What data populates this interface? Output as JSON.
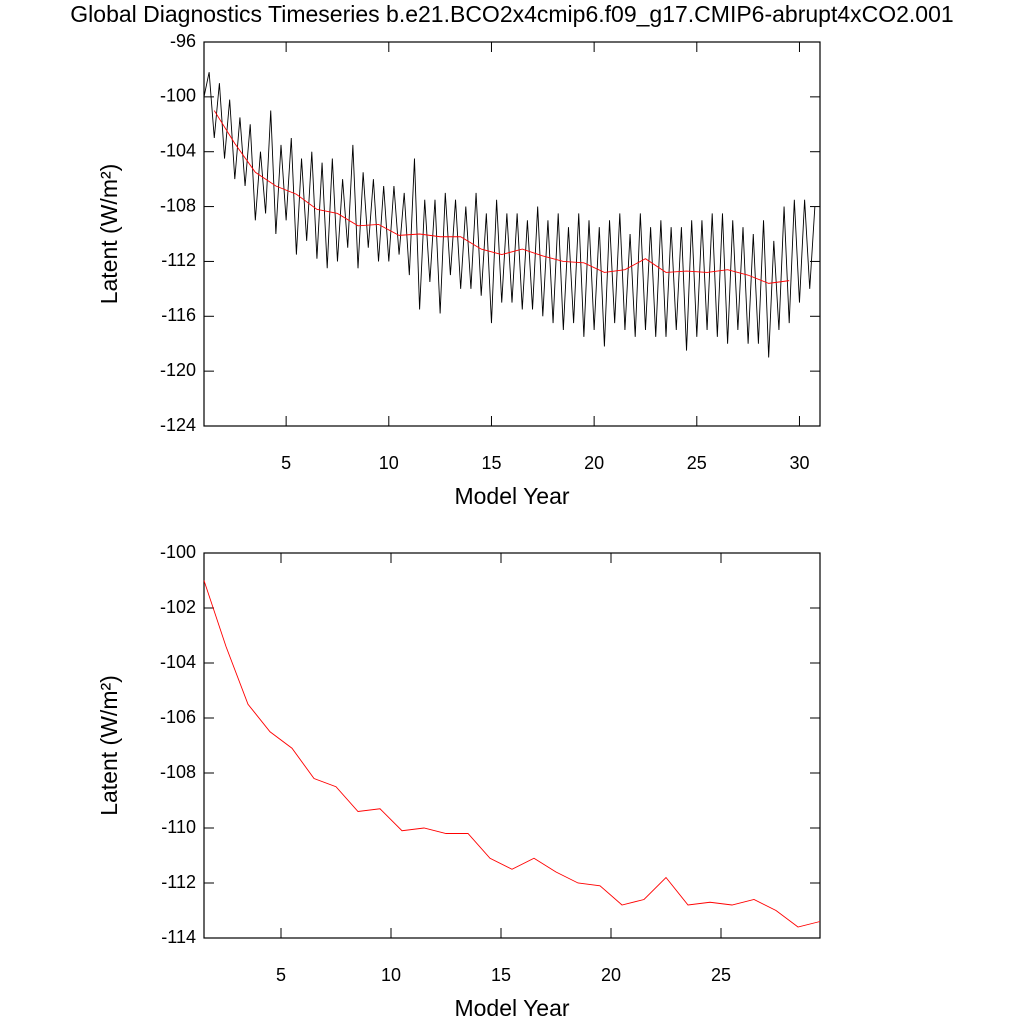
{
  "title": "Global Diagnostics Timeseries b.e21.BCO2x4cmip6.f09_g17.CMIP6-abrupt4xCO2.001",
  "chart_data": [
    {
      "type": "line",
      "x_label": "Model Year",
      "y_label": "Latent (W/m²)",
      "xlim": [
        1,
        31
      ],
      "xticks": [
        5,
        10,
        15,
        20,
        25,
        30
      ],
      "ylim": [
        -124,
        -96
      ],
      "yticks": [
        -124,
        -120,
        -116,
        -112,
        -108,
        -104,
        -100,
        -96
      ],
      "series": [
        {
          "color": "#000000",
          "x": [
            1,
            1.25,
            1.5,
            1.75,
            2,
            2.25,
            2.5,
            2.75,
            3,
            3.25,
            3.5,
            3.75,
            4,
            4.25,
            4.5,
            4.75,
            5,
            5.25,
            5.5,
            5.75,
            6,
            6.25,
            6.5,
            6.75,
            7,
            7.25,
            7.5,
            7.75,
            8,
            8.25,
            8.5,
            8.75,
            9,
            9.25,
            9.5,
            9.75,
            10,
            10.25,
            10.5,
            10.75,
            11,
            11.25,
            11.5,
            11.75,
            12,
            12.25,
            12.5,
            12.75,
            13,
            13.25,
            13.5,
            13.75,
            14,
            14.25,
            14.5,
            14.75,
            15,
            15.25,
            15.5,
            15.75,
            16,
            16.25,
            16.5,
            16.75,
            17,
            17.25,
            17.5,
            17.75,
            18,
            18.25,
            18.5,
            18.75,
            19,
            19.25,
            19.5,
            19.75,
            20,
            20.25,
            20.5,
            20.75,
            21,
            21.25,
            21.5,
            21.75,
            22,
            22.25,
            22.5,
            22.75,
            23,
            23.25,
            23.5,
            23.75,
            24,
            24.25,
            24.5,
            24.75,
            25,
            25.25,
            25.5,
            25.75,
            26,
            26.25,
            26.5,
            26.75,
            27,
            27.25,
            27.5,
            27.75,
            28,
            28.25,
            28.5,
            28.75,
            29,
            29.25,
            29.5,
            29.75,
            30,
            30.25,
            30.5,
            30.75
          ],
          "values": [
            -100.0,
            -98.2,
            -103.0,
            -99.0,
            -104.5,
            -100.2,
            -106.0,
            -101.5,
            -106.5,
            -102.0,
            -109.0,
            -104.0,
            -108.5,
            -101.0,
            -110.0,
            -103.5,
            -109.0,
            -103.0,
            -111.5,
            -104.5,
            -110.5,
            -104.0,
            -111.8,
            -104.8,
            -112.5,
            -104.5,
            -112.0,
            -106.0,
            -111.0,
            -103.5,
            -112.5,
            -105.5,
            -111.0,
            -106.0,
            -112.0,
            -106.5,
            -112.0,
            -106.5,
            -111.5,
            -107.0,
            -113.0,
            -104.5,
            -115.5,
            -107.5,
            -113.5,
            -107.5,
            -115.8,
            -107.0,
            -113.0,
            -107.5,
            -114.0,
            -108.0,
            -114.0,
            -107.0,
            -114.5,
            -108.5,
            -116.5,
            -107.5,
            -115.0,
            -108.5,
            -115.0,
            -108.5,
            -115.5,
            -109.0,
            -115.5,
            -108.0,
            -116.0,
            -109.0,
            -116.5,
            -108.5,
            -117.0,
            -109.5,
            -116.5,
            -108.5,
            -117.5,
            -109.0,
            -117.0,
            -109.5,
            -118.2,
            -109.0,
            -116.5,
            -108.5,
            -117.0,
            -110.0,
            -117.5,
            -108.5,
            -117.0,
            -109.5,
            -117.5,
            -109.0,
            -117.5,
            -109.5,
            -117.0,
            -109.5,
            -118.5,
            -109.0,
            -117.5,
            -109.0,
            -117.0,
            -108.5,
            -117.5,
            -108.5,
            -118.0,
            -109.0,
            -117.0,
            -109.5,
            -118.0,
            -110.0,
            -118.0,
            -109.0,
            -119.0,
            -110.5,
            -117.0,
            -108.0,
            -116.5,
            -107.5,
            -115.0,
            -107.5,
            -114.0,
            -108.0
          ]
        },
        {
          "color": "#ff0000",
          "x": [
            1.5,
            2.5,
            3.5,
            4.5,
            5.5,
            6.5,
            7.5,
            8.5,
            9.5,
            10.5,
            11.5,
            12.5,
            13.5,
            14.5,
            15.5,
            16.5,
            17.5,
            18.5,
            19.5,
            20.5,
            21.5,
            22.5,
            23.5,
            24.5,
            25.5,
            26.5,
            27.5,
            28.5,
            29.5
          ],
          "values": [
            -101.0,
            -103.4,
            -105.5,
            -106.5,
            -107.1,
            -108.2,
            -108.5,
            -109.4,
            -109.3,
            -110.1,
            -110.0,
            -110.2,
            -110.2,
            -111.1,
            -111.5,
            -111.1,
            -111.6,
            -112.0,
            -112.1,
            -112.8,
            -112.6,
            -111.8,
            -112.8,
            -112.7,
            -112.8,
            -112.6,
            -113.0,
            -113.6,
            -113.4
          ]
        }
      ]
    },
    {
      "type": "line",
      "x_label": "Model Year",
      "y_label": "Latent (W/m²)",
      "xlim": [
        1.5,
        29.5
      ],
      "xticks": [
        5,
        10,
        15,
        20,
        25
      ],
      "ylim": [
        -114,
        -100
      ],
      "yticks": [
        -114,
        -112,
        -110,
        -108,
        -106,
        -104,
        -102,
        -100
      ],
      "series": [
        {
          "color": "#ff0000",
          "x": [
            1.5,
            2.5,
            3.5,
            4.5,
            5.5,
            6.5,
            7.5,
            8.5,
            9.5,
            10.5,
            11.5,
            12.5,
            13.5,
            14.5,
            15.5,
            16.5,
            17.5,
            18.5,
            19.5,
            20.5,
            21.5,
            22.5,
            23.5,
            24.5,
            25.5,
            26.5,
            27.5,
            28.5,
            29.5
          ],
          "values": [
            -101.0,
            -103.4,
            -105.5,
            -106.5,
            -107.1,
            -108.2,
            -108.5,
            -109.4,
            -109.3,
            -110.1,
            -110.0,
            -110.2,
            -110.2,
            -111.1,
            -111.5,
            -111.1,
            -111.6,
            -112.0,
            -112.1,
            -112.8,
            -112.6,
            -111.8,
            -112.8,
            -112.7,
            -112.8,
            -112.6,
            -113.0,
            -113.6,
            -113.4
          ]
        }
      ]
    }
  ]
}
